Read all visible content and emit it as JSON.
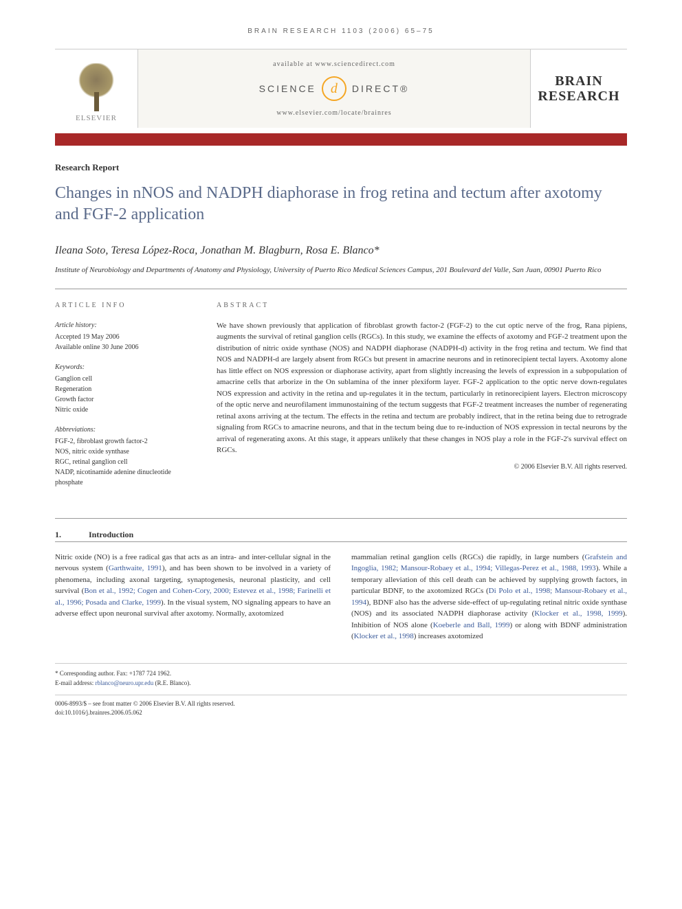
{
  "running_header": "BRAIN RESEARCH 1103 (2006) 65–75",
  "header_box": {
    "elsevier_label": "ELSEVIER",
    "available_at": "available at www.sciencedirect.com",
    "sd_left": "SCIENCE",
    "sd_swirl": "d",
    "sd_right": "DIRECT®",
    "journal_url": "www.elsevier.com/locate/brainres",
    "journal_name_line1": "BRAIN",
    "journal_name_line2": "RESEARCH"
  },
  "color_bar": "#a82828",
  "article_type": "Research Report",
  "title": "Changes in nNOS and NADPH diaphorase in frog retina and tectum after axotomy and FGF-2 application",
  "authors": "Ileana Soto, Teresa López-Roca, Jonathan M. Blagburn, Rosa E. Blanco*",
  "affiliation": "Institute of Neurobiology and Departments of Anatomy and Physiology, University of Puerto Rico Medical Sciences Campus, 201 Boulevard del Valle, San Juan, 00901 Puerto Rico",
  "info": {
    "header": "ARTICLE INFO",
    "history_title": "Article history:",
    "history_accepted": "Accepted 19 May 2006",
    "history_online": "Available online 30 June 2006",
    "keywords_title": "Keywords:",
    "keywords": [
      "Ganglion cell",
      "Regeneration",
      "Growth factor",
      "Nitric oxide"
    ],
    "abbrev_title": "Abbreviations:",
    "abbreviations": [
      "FGF-2, fibroblast growth factor-2",
      "NOS, nitric oxide synthase",
      "RGC, retinal ganglion cell",
      "NADP, nicotinamide adenine dinucleotide phosphate"
    ]
  },
  "abstract": {
    "header": "ABSTRACT",
    "text": "We have shown previously that application of fibroblast growth factor-2 (FGF-2) to the cut optic nerve of the frog, Rana pipiens, augments the survival of retinal ganglion cells (RGCs). In this study, we examine the effects of axotomy and FGF-2 treatment upon the distribution of nitric oxide synthase (NOS) and NADPH diaphorase (NADPH-d) activity in the frog retina and tectum. We find that NOS and NADPH-d are largely absent from RGCs but present in amacrine neurons and in retinorecipient tectal layers. Axotomy alone has little effect on NOS expression or diaphorase activity, apart from slightly increasing the levels of expression in a subpopulation of amacrine cells that arborize in the On sublamina of the inner plexiform layer. FGF-2 application to the optic nerve down-regulates NOS expression and activity in the retina and up-regulates it in the tectum, particularly in retinorecipient layers. Electron microscopy of the optic nerve and neurofilament immunostaining of the tectum suggests that FGF-2 treatment increases the number of regenerating retinal axons arriving at the tectum. The effects in the retina and tectum are probably indirect, that in the retina being due to retrograde signaling from RGCs to amacrine neurons, and that in the tectum being due to re-induction of NOS expression in tectal neurons by the arrival of regenerating axons. At this stage, it appears unlikely that these changes in NOS play a role in the FGF-2's survival effect on RGCs.",
    "copyright": "© 2006 Elsevier B.V. All rights reserved."
  },
  "section1": {
    "number": "1.",
    "title": "Introduction"
  },
  "body": {
    "col1_pre": "Nitric oxide (NO) is a free radical gas that acts as an intra- and inter-cellular signal in the nervous system (",
    "col1_ref1": "Garthwaite, 1991",
    "col1_mid1": "), and has been shown to be involved in a variety of phenomena, including axonal targeting, synaptogenesis, neuronal plasticity, and cell survival (",
    "col1_ref2": "Bon et al., 1992; Cogen and Cohen-Cory, 2000; Estevez et al., 1998; Farinelli et al., 1996; Posada and Clarke, 1999",
    "col1_post": "). In the visual system, NO signaling appears to have an adverse effect upon neuronal survival after axotomy. Normally, axotomized",
    "col2_pre": "mammalian retinal ganglion cells (RGCs) die rapidly, in large numbers (",
    "col2_ref1": "Grafstein and Ingoglia, 1982; Mansour-Robaey et al., 1994; Villegas-Perez et al., 1988, 1993",
    "col2_mid1": "). While a temporary alleviation of this cell death can be achieved by supplying growth factors, in particular BDNF, to the axotomized RGCs (",
    "col2_ref2": "Di Polo et al., 1998; Mansour-Robaey et al., 1994",
    "col2_mid2": "), BDNF also has the adverse side-effect of up-regulating retinal nitric oxide synthase (NOS) and its associated NADPH diaphorase activity (",
    "col2_ref3": "Klocker et al., 1998, 1999",
    "col2_mid3": "). Inhibition of NOS alone (",
    "col2_ref4": "Koeberle and Ball, 1999",
    "col2_mid4": ") or along with BDNF administration (",
    "col2_ref5": "Klocker et al., 1998",
    "col2_post": ") increases axotomized"
  },
  "footer": {
    "corr_label": "* Corresponding author. Fax: +1787 724 1962.",
    "email_label": "E-mail address: ",
    "email": "rblanco@neuro.upr.edu",
    "email_person": " (R.E. Blanco).",
    "issn_line": "0006-8993/$ – see front matter © 2006 Elsevier B.V. All rights reserved.",
    "doi_line": "doi:10.1016/j.brainres.2006.05.062"
  },
  "colors": {
    "bar": "#a82828",
    "title": "#5a6a8a",
    "link": "#3a5a9a",
    "orange": "#f5a623"
  }
}
